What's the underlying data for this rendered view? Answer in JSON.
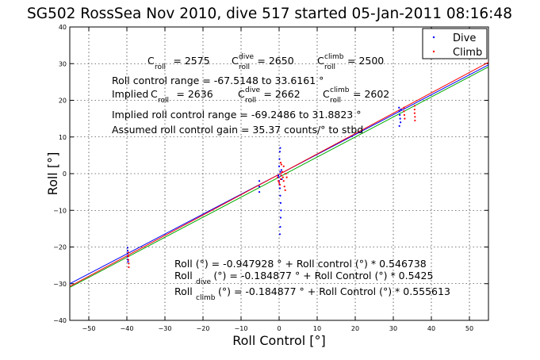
{
  "chart_data": {
    "type": "scatter",
    "title": "SG502 RossSea Nov 2010, dive 517 started 05-Jan-2011 08:16:48",
    "xlabel": "Roll Control [°]",
    "ylabel": "Roll [°]",
    "xlim": [
      -55,
      55
    ],
    "ylim": [
      -40,
      40
    ],
    "xticks": [
      -50,
      -40,
      -30,
      -20,
      -10,
      0,
      10,
      20,
      30,
      40,
      50
    ],
    "yticks": [
      -40,
      -30,
      -20,
      -10,
      0,
      10,
      20,
      30,
      40
    ],
    "grid": true,
    "legend": {
      "position": "top-right",
      "entries": [
        {
          "label": "Dive",
          "color": "#0000ff"
        },
        {
          "label": "Climb",
          "color": "#ff0000"
        }
      ]
    },
    "fit_lines": [
      {
        "color": "#00aa00",
        "intercept": -0.947928,
        "slope": 0.546738
      },
      {
        "color": "#0000ff",
        "intercept": -0.184877,
        "slope": 0.5425
      },
      {
        "color": "#ff0000",
        "intercept": -0.184877,
        "slope": 0.555613
      }
    ],
    "dive_points": [
      [
        -39.8,
        -20.2
      ],
      [
        -39.8,
        -21.0
      ],
      [
        -39.8,
        -21.8
      ],
      [
        -39.8,
        -22.6
      ],
      [
        -39.8,
        -23.4
      ],
      [
        -39.7,
        -24.0
      ],
      [
        -5.2,
        -2.0
      ],
      [
        -5.2,
        -3.5
      ],
      [
        -5.2,
        -5.0
      ],
      [
        -0.2,
        -0.5
      ],
      [
        -0.1,
        -1.0
      ],
      [
        0.0,
        -2.0
      ],
      [
        0.1,
        -3.0
      ],
      [
        0.2,
        -4.0
      ],
      [
        0.3,
        -6.0
      ],
      [
        0.4,
        -8.0
      ],
      [
        0.5,
        -10.0
      ],
      [
        0.4,
        -12.0
      ],
      [
        0.3,
        -14.5
      ],
      [
        0.2,
        -16.5
      ],
      [
        0.0,
        2.0
      ],
      [
        0.1,
        4.0
      ],
      [
        0.2,
        6.0
      ],
      [
        0.3,
        7.0
      ],
      [
        0.3,
        0.5
      ],
      [
        0.5,
        -0.5
      ],
      [
        0.6,
        1.0
      ],
      [
        0.7,
        -1.5
      ],
      [
        31.5,
        18.0
      ],
      [
        31.6,
        17.0
      ],
      [
        31.7,
        16.0
      ],
      [
        31.8,
        15.0
      ],
      [
        31.9,
        14.0
      ],
      [
        31.6,
        13.0
      ],
      [
        32.0,
        17.5
      ]
    ],
    "climb_points": [
      [
        -39.6,
        -21.5
      ],
      [
        -39.6,
        -22.5
      ],
      [
        -39.6,
        -23.5
      ],
      [
        -39.5,
        -24.5
      ],
      [
        -39.5,
        -25.5
      ],
      [
        -0.4,
        -1.0
      ],
      [
        -0.2,
        -2.0
      ],
      [
        0.0,
        -2.5
      ],
      [
        0.2,
        -3.0
      ],
      [
        0.4,
        -1.5
      ],
      [
        0.6,
        -0.5
      ],
      [
        0.8,
        0.5
      ],
      [
        1.0,
        -1.0
      ],
      [
        1.2,
        -2.0
      ],
      [
        1.4,
        -3.5
      ],
      [
        1.6,
        -4.5
      ],
      [
        1.8,
        0.0
      ],
      [
        2.0,
        -1.0
      ],
      [
        0.6,
        2.5
      ],
      [
        0.4,
        3.0
      ],
      [
        1.2,
        2.0
      ],
      [
        32.8,
        17.0
      ],
      [
        32.9,
        16.0
      ],
      [
        33.0,
        15.0
      ],
      [
        32.8,
        18.0
      ],
      [
        35.6,
        18.5
      ],
      [
        35.6,
        17.5
      ],
      [
        35.6,
        16.5
      ],
      [
        35.7,
        15.5
      ],
      [
        35.7,
        14.5
      ]
    ],
    "annotations": {
      "c_roll": {
        "base": "C",
        "sub": "roll",
        "value": " = 2575"
      },
      "c_roll_dive": {
        "base": "C",
        "sup": "dive",
        "sub": "roll",
        "value": " = 2650"
      },
      "c_roll_climb": {
        "base": "C",
        "sup": "climb",
        "sub": "roll",
        "value": " = 2500"
      },
      "range_line": "Roll control range = -67.5148 to 33.6161 °",
      "implied_prefix": "Implied ",
      "implied_c_roll": {
        "base": "C",
        "sub": "roll",
        "value": " = 2636"
      },
      "implied_c_dive": {
        "base": "C",
        "sup": "dive",
        "sub": "roll",
        "value": " = 2662"
      },
      "implied_c_climb": {
        "base": "C",
        "sup": "climb",
        "sub": "roll",
        "value": " = 2602"
      },
      "implied_range_line": "Implied roll control range = -69.2486 to 31.8823 °",
      "gain_line": "Assumed roll control gain = 35.37 counts/° to stbd",
      "eq1": "Roll (°) = -0.947928 ° + Roll control (°) * 0.546738",
      "eq2": {
        "base": "Roll",
        "sub": "dive",
        "rest": " (°) = -0.184877 ° + Roll Control (°) * 0.5425"
      },
      "eq3": {
        "base": "Roll",
        "sub": "climb",
        "rest": " (°) = -0.184877 ° + Roll Control (°) * 0.555613"
      }
    }
  }
}
